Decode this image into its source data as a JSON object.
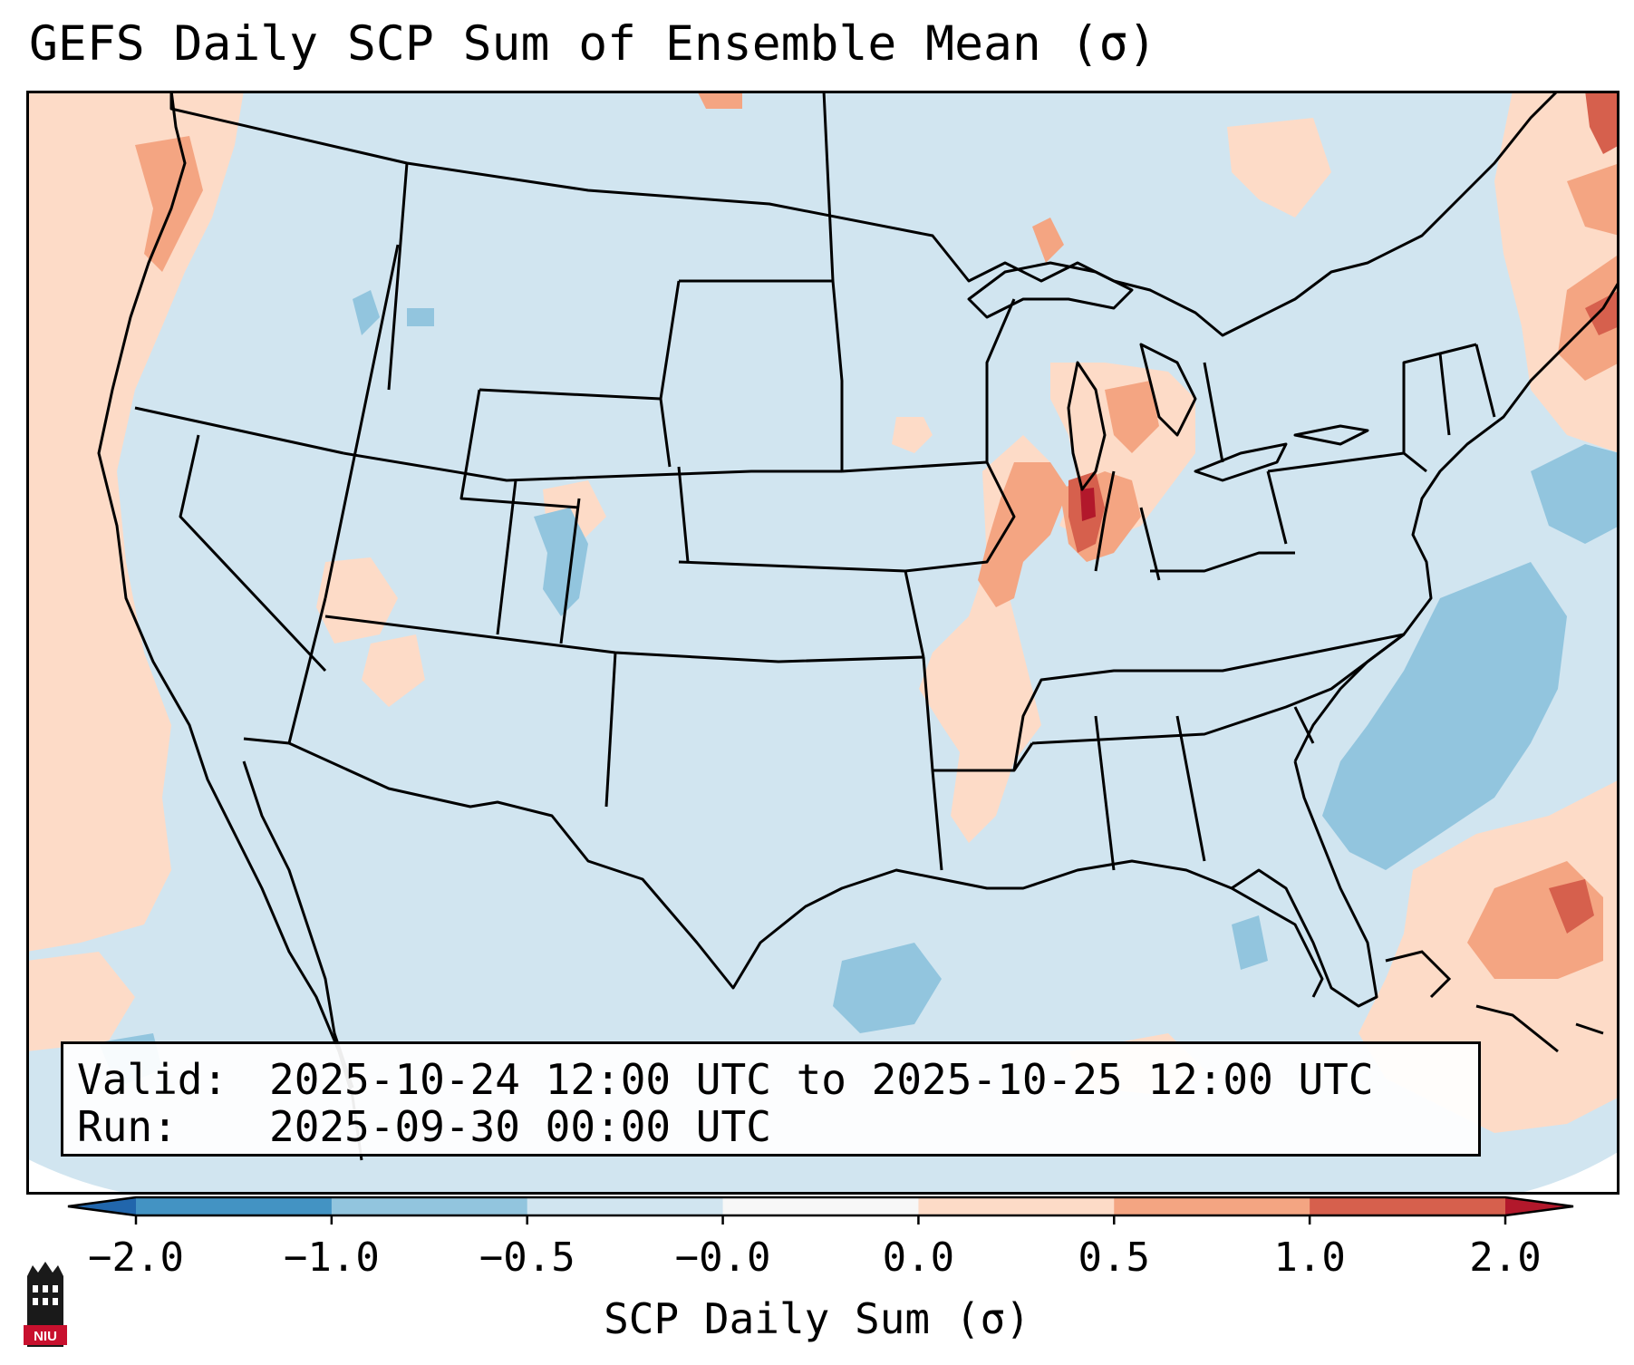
{
  "title": "GEFS Daily SCP Sum of Ensemble Mean (σ)",
  "map": {
    "region": "Continental United States",
    "background_color": "#d1e5f0",
    "land_color": "#d1e5f0"
  },
  "info_box": {
    "valid_label": "Valid:",
    "valid_value": "2025-10-24 12:00 UTC to 2025-10-25 12:00 UTC",
    "run_label": "Run:",
    "run_value": "2025-09-30 00:00 UTC"
  },
  "colorbar": {
    "label": "SCP Daily Sum (σ)",
    "ticks": [
      "−2.0",
      "−1.0",
      "−0.5",
      "−0.0",
      "0.0",
      "0.5",
      "1.0",
      "2.0"
    ],
    "bins": [
      {
        "from": -2.0,
        "to": -1.0,
        "color": "#4393c3"
      },
      {
        "from": -1.0,
        "to": -0.5,
        "color": "#92c5de"
      },
      {
        "from": -0.5,
        "to": 0.0,
        "color": "#d1e5f0"
      },
      {
        "from": 0.0,
        "to": 0.0,
        "color": "#f7f7f7"
      },
      {
        "from": 0.0,
        "to": 0.5,
        "color": "#fddbc7"
      },
      {
        "from": 0.5,
        "to": 1.0,
        "color": "#f4a582"
      },
      {
        "from": 1.0,
        "to": 2.0,
        "color": "#d6604d"
      }
    ],
    "under_color": "#2166ac",
    "over_color": "#b2182b"
  },
  "logo": {
    "text": "NIU",
    "color": "#c8102e"
  }
}
